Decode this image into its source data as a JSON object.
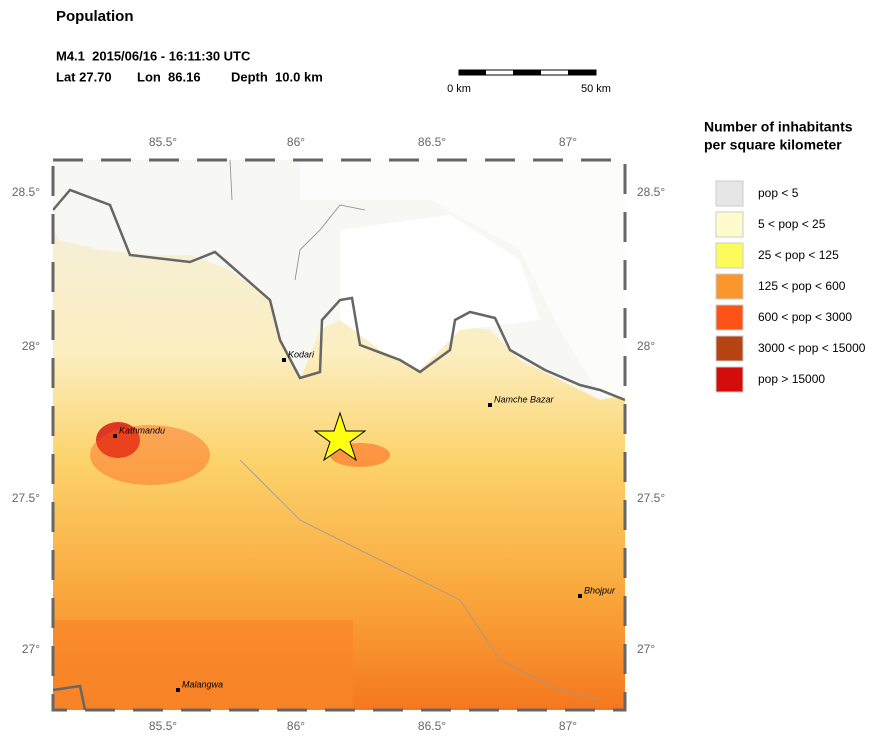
{
  "header": {
    "title": "Population",
    "event": "M4.1  2015/06/16 - 16:11:30 UTC",
    "location": [
      "Lat 27.70",
      "Lon  86.16",
      "Depth  10.0 km"
    ]
  },
  "scale_bar": {
    "labels": [
      "0 km",
      "50 km"
    ]
  },
  "map": {
    "lon_ticks": [
      "85.5°",
      "86°",
      "86.5°",
      "87°"
    ],
    "lat_ticks": [
      "28.5°",
      "28°",
      "27.5°",
      "27°"
    ],
    "cities": [
      "Kodari",
      "Kathmandu",
      "Namche Bazar",
      "Bhojpur",
      "Malangwa"
    ]
  },
  "legend": {
    "title": [
      "Number of inhabitants",
      "per square kilometer"
    ],
    "entries": [
      {
        "label": "pop < 5",
        "color": "#e6e6e6"
      },
      {
        "label": "5 < pop < 25",
        "color": "#fefccc"
      },
      {
        "label": "25 < pop < 125",
        "color": "#fdfb5a"
      },
      {
        "label": "125 < pop < 600",
        "color": "#fb962c"
      },
      {
        "label": "600 < pop < 3000",
        "color": "#fc5416"
      },
      {
        "label": "3000 < pop < 15000",
        "color": "#b74413"
      },
      {
        "label": "pop > 15000",
        "color": "#d40d0c"
      }
    ]
  }
}
